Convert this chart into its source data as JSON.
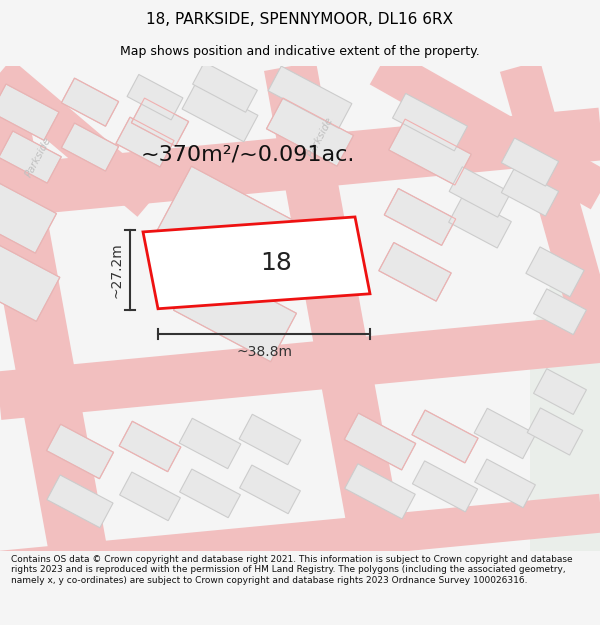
{
  "title": "18, PARKSIDE, SPENNYMOOR, DL16 6RX",
  "subtitle": "Map shows position and indicative extent of the property.",
  "area_text": "~370m²/~0.091ac.",
  "dim_width": "~38.8m",
  "dim_height": "~27.2m",
  "plot_number": "18",
  "footer_text": "Contains OS data © Crown copyright and database right 2021. This information is subject to Crown copyright and database rights 2023 and is reproduced with the permission of HM Land Registry. The polygons (including the associated geometry, namely x, y co-ordinates) are subject to Crown copyright and database rights 2023 Ordnance Survey 100026316.",
  "bg_color": "#f5f5f5",
  "map_bg": "#ffffff",
  "plot_edge": "#ee1111",
  "road_color": "#f2bfbf",
  "building_fill": "#e8e8e8",
  "building_edge": "#cccccc",
  "road_outline": "#f0a0a0",
  "dim_color": "#333333",
  "text_color": "#000000",
  "street_label_color": "#c0c0c0",
  "green_fill": "#eaeeea",
  "title_fontsize": 11,
  "subtitle_fontsize": 9,
  "area_fontsize": 16,
  "plot_label_fontsize": 18,
  "dim_fontsize": 10,
  "footer_fontsize": 6.5
}
